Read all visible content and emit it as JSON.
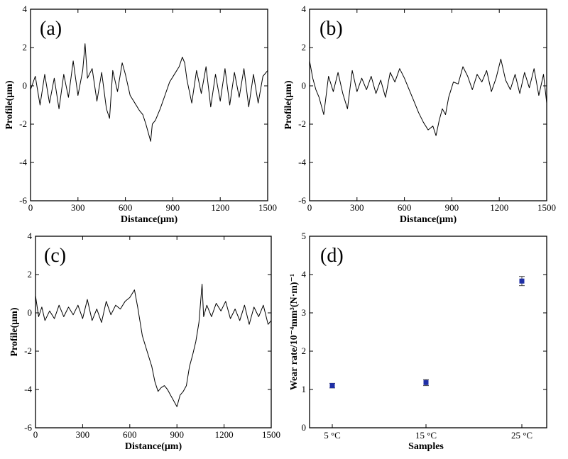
{
  "chart_data": [
    {
      "id": "a",
      "type": "line",
      "panel_label": "(a)",
      "xlabel": "Distance(μm)",
      "ylabel": "Profile(μm)",
      "xlim": [
        0,
        1500
      ],
      "ylim": [
        -6,
        4
      ],
      "xticks": [
        0,
        300,
        600,
        900,
        1200,
        1500
      ],
      "xtick_labels": [
        "0",
        "300",
        "600",
        "900",
        "1200",
        "1500"
      ],
      "yticks": [
        -6,
        -4,
        -2,
        0,
        2,
        4
      ],
      "ytick_labels": [
        "-6",
        "-4",
        "-2",
        "0",
        "2",
        "4"
      ],
      "series": [
        {
          "name": "profile",
          "x": [
            0,
            30,
            60,
            90,
            120,
            150,
            180,
            210,
            240,
            270,
            300,
            330,
            345,
            360,
            390,
            420,
            450,
            480,
            500,
            520,
            550,
            580,
            600,
            630,
            660,
            690,
            710,
            730,
            750,
            760,
            770,
            790,
            820,
            850,
            880,
            910,
            940,
            960,
            975,
            990,
            1020,
            1050,
            1080,
            1110,
            1140,
            1170,
            1200,
            1230,
            1260,
            1290,
            1320,
            1350,
            1380,
            1410,
            1440,
            1470,
            1500
          ],
          "y": [
            -0.2,
            0.5,
            -1.0,
            0.6,
            -0.9,
            0.4,
            -1.2,
            0.6,
            -0.6,
            1.3,
            -0.5,
            0.8,
            2.2,
            0.4,
            0.9,
            -0.8,
            0.7,
            -1.2,
            -1.7,
            0.8,
            -0.3,
            1.2,
            0.6,
            -0.5,
            -0.9,
            -1.3,
            -1.5,
            -2.0,
            -2.6,
            -2.9,
            -2.0,
            -1.8,
            -1.2,
            -0.5,
            0.2,
            0.6,
            1.0,
            1.5,
            1.2,
            0.3,
            -0.9,
            0.8,
            -0.4,
            1.0,
            -1.1,
            0.6,
            -0.8,
            0.9,
            -1.0,
            0.7,
            -0.6,
            0.9,
            -1.1,
            0.6,
            -0.9,
            0.5,
            0.8
          ]
        }
      ]
    },
    {
      "id": "b",
      "type": "line",
      "panel_label": "(b)",
      "xlabel": "Distance(μm)",
      "ylabel": "Profile(μm)",
      "xlim": [
        0,
        1500
      ],
      "ylim": [
        -6,
        4
      ],
      "xticks": [
        0,
        300,
        600,
        900,
        1200,
        1500
      ],
      "xtick_labels": [
        "0",
        "300",
        "600",
        "900",
        "1200",
        "1500"
      ],
      "yticks": [
        -6,
        -4,
        -2,
        0,
        2,
        4
      ],
      "ytick_labels": [
        "-6",
        "-4",
        "-2",
        "0",
        "2",
        "4"
      ],
      "series": [
        {
          "name": "profile",
          "x": [
            0,
            20,
            40,
            60,
            90,
            120,
            150,
            180,
            210,
            240,
            270,
            300,
            330,
            360,
            390,
            420,
            450,
            480,
            510,
            540,
            570,
            600,
            630,
            660,
            690,
            720,
            750,
            780,
            800,
            820,
            840,
            860,
            880,
            910,
            940,
            970,
            1000,
            1030,
            1060,
            1090,
            1120,
            1150,
            1180,
            1210,
            1240,
            1270,
            1300,
            1330,
            1360,
            1390,
            1420,
            1450,
            1480,
            1500
          ],
          "y": [
            1.3,
            0.4,
            -0.2,
            -0.6,
            -1.5,
            0.5,
            -0.3,
            0.7,
            -0.4,
            -1.2,
            0.8,
            -0.3,
            0.4,
            -0.2,
            0.5,
            -0.4,
            0.3,
            -0.6,
            0.7,
            0.2,
            0.9,
            0.4,
            -0.2,
            -0.8,
            -1.4,
            -1.9,
            -2.3,
            -2.1,
            -2.6,
            -1.8,
            -1.2,
            -1.5,
            -0.6,
            0.2,
            0.1,
            1.0,
            0.5,
            -0.2,
            0.6,
            0.2,
            0.8,
            -0.3,
            0.4,
            1.4,
            0.3,
            -0.2,
            0.6,
            -0.4,
            0.7,
            -0.1,
            0.9,
            -0.5,
            0.6,
            -0.9
          ]
        }
      ]
    },
    {
      "id": "c",
      "type": "line",
      "panel_label": "(c)",
      "xlabel": "Distance(μm)",
      "ylabel": "Profile(μm)",
      "xlim": [
        0,
        1500
      ],
      "ylim": [
        -6,
        4
      ],
      "xticks": [
        0,
        300,
        600,
        900,
        1200,
        1500
      ],
      "xtick_labels": [
        "0",
        "300",
        "600",
        "900",
        "1200",
        "1500"
      ],
      "yticks": [
        -6,
        -4,
        -2,
        0,
        2,
        4
      ],
      "ytick_labels": [
        "-6",
        "-4",
        "-2",
        "0",
        "2",
        "4"
      ],
      "series": [
        {
          "name": "profile",
          "x": [
            0,
            20,
            40,
            60,
            90,
            120,
            150,
            180,
            210,
            240,
            270,
            300,
            330,
            360,
            390,
            420,
            450,
            480,
            510,
            540,
            570,
            600,
            630,
            650,
            680,
            710,
            740,
            760,
            780,
            800,
            820,
            840,
            860,
            880,
            900,
            920,
            940,
            960,
            980,
            1000,
            1020,
            1040,
            1060,
            1070,
            1090,
            1120,
            1150,
            1180,
            1210,
            1240,
            1270,
            1300,
            1330,
            1360,
            1390,
            1420,
            1450,
            1480,
            1500
          ],
          "y": [
            0.9,
            -0.2,
            0.3,
            -0.4,
            0.1,
            -0.3,
            0.4,
            -0.2,
            0.3,
            -0.1,
            0.4,
            -0.3,
            0.7,
            -0.4,
            0.2,
            -0.5,
            0.6,
            -0.1,
            0.4,
            0.2,
            0.6,
            0.8,
            1.2,
            0.3,
            -1.2,
            -2.0,
            -2.8,
            -3.6,
            -4.1,
            -3.9,
            -3.8,
            -4.0,
            -4.3,
            -4.6,
            -4.9,
            -4.3,
            -4.1,
            -3.8,
            -2.8,
            -2.2,
            -1.5,
            -0.5,
            1.5,
            -0.2,
            0.4,
            -0.2,
            0.5,
            0.1,
            0.6,
            -0.3,
            0.2,
            -0.4,
            0.4,
            -0.6,
            0.3,
            -0.2,
            0.4,
            -0.6,
            -0.4
          ]
        }
      ]
    },
    {
      "id": "d",
      "type": "scatter",
      "panel_label": "(d)",
      "xlabel": "Samples",
      "ylabel": "Wear rate/10⁻⁴mm³(N·m)⁻¹",
      "categories": [
        "5 °C",
        "15 °C",
        "25 °C"
      ],
      "values": [
        1.1,
        1.18,
        3.83
      ],
      "errors": [
        0.06,
        0.08,
        0.12
      ],
      "ylim": [
        0,
        5
      ],
      "yticks": [
        0,
        1,
        2,
        3,
        4,
        5
      ],
      "ytick_labels": [
        "0",
        "1",
        "2",
        "3",
        "4",
        "5"
      ],
      "marker_color": "#1f2fa6"
    }
  ]
}
